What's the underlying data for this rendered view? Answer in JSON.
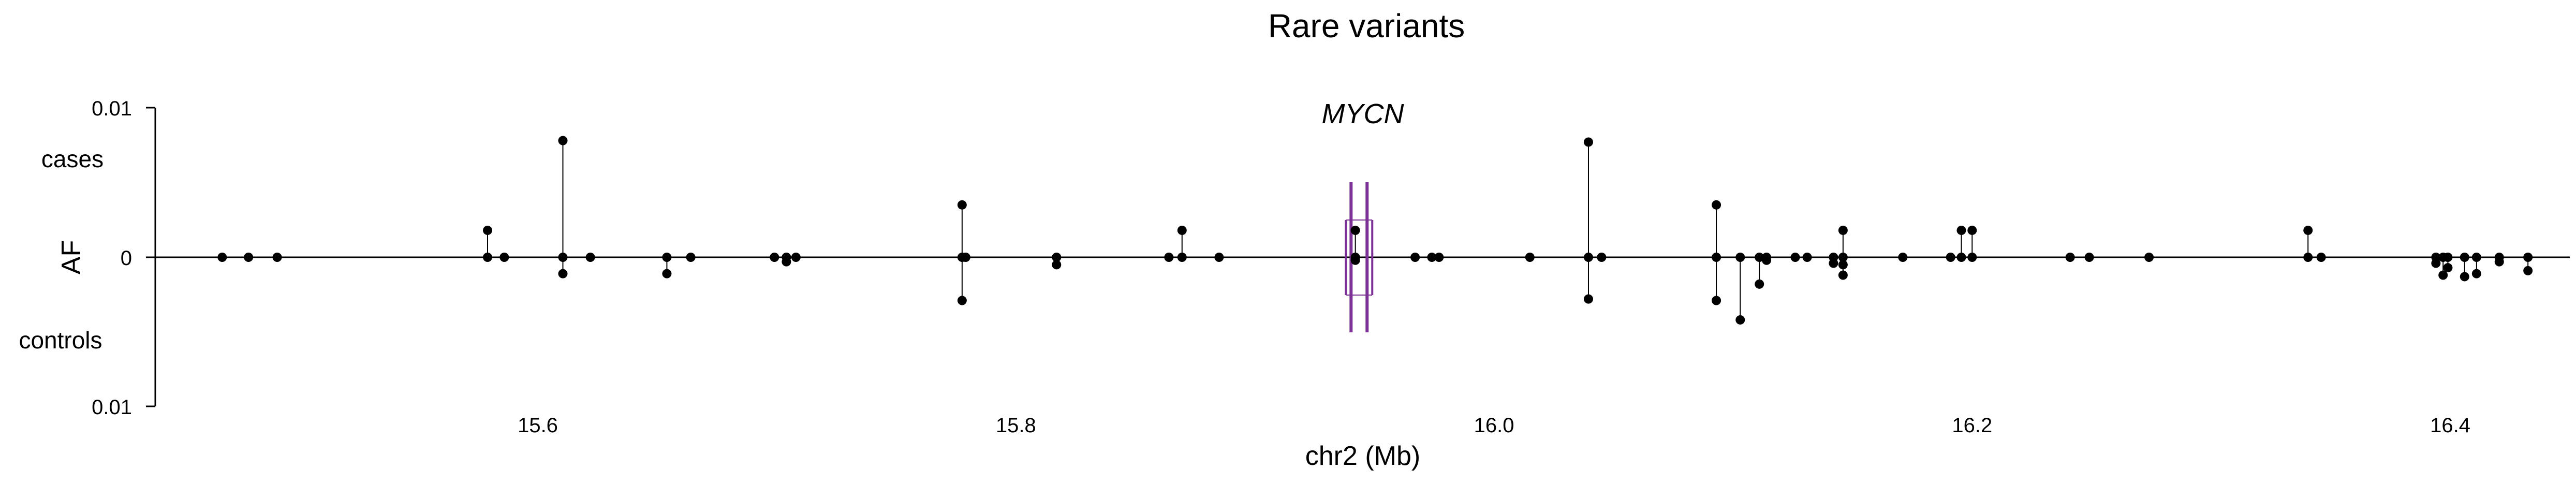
{
  "chart_data": {
    "type": "scatter",
    "title": "Rare variants",
    "gene_label": "MYCN",
    "xlabel": "chr2 (Mb)",
    "ylabel": "AF",
    "group_labels": {
      "upper": "cases",
      "lower": "controls"
    },
    "xlim": [
      15.44,
      16.45
    ],
    "ylim": [
      -0.01,
      0.01
    ],
    "x_ticks": [
      "15.6",
      "15.8",
      "16.0",
      "16.2",
      "16.4"
    ],
    "y_ticks": {
      "top": "0.01",
      "middle": "0",
      "bottom": "0.01"
    },
    "gene_color": "#7b3294",
    "gene": {
      "start": 15.9402,
      "end": 15.9469
    },
    "cases": [
      {
        "x": 15.468,
        "af": 0
      },
      {
        "x": 15.479,
        "af": 0
      },
      {
        "x": 15.491,
        "af": 0
      },
      {
        "x": 15.579,
        "af": 0.0018
      },
      {
        "x": 15.579,
        "af": 0
      },
      {
        "x": 15.586,
        "af": 0
      },
      {
        "x": 15.6105,
        "af": 0.0078
      },
      {
        "x": 15.6105,
        "af": 0
      },
      {
        "x": 15.622,
        "af": 0
      },
      {
        "x": 15.654,
        "af": 0
      },
      {
        "x": 15.664,
        "af": 0
      },
      {
        "x": 15.699,
        "af": 0
      },
      {
        "x": 15.704,
        "af": 0
      },
      {
        "x": 15.708,
        "af": 0
      },
      {
        "x": 15.7775,
        "af": 0.0035
      },
      {
        "x": 15.7775,
        "af": 0
      },
      {
        "x": 15.779,
        "af": 0
      },
      {
        "x": 15.817,
        "af": 0
      },
      {
        "x": 15.864,
        "af": 0
      },
      {
        "x": 15.8695,
        "af": 0.0018
      },
      {
        "x": 15.8695,
        "af": 0
      },
      {
        "x": 15.885,
        "af": 0
      },
      {
        "x": 15.942,
        "af": 0.0018
      },
      {
        "x": 15.942,
        "af": 0
      },
      {
        "x": 15.967,
        "af": 0
      },
      {
        "x": 15.974,
        "af": 0
      },
      {
        "x": 15.977,
        "af": 0
      },
      {
        "x": 16.015,
        "af": 0
      },
      {
        "x": 16.0395,
        "af": 0.0077
      },
      {
        "x": 16.0395,
        "af": 0
      },
      {
        "x": 16.045,
        "af": 0
      },
      {
        "x": 16.093,
        "af": 0.0035
      },
      {
        "x": 16.093,
        "af": 0
      },
      {
        "x": 16.103,
        "af": 0
      },
      {
        "x": 16.111,
        "af": 0
      },
      {
        "x": 16.114,
        "af": 0
      },
      {
        "x": 16.126,
        "af": 0
      },
      {
        "x": 16.131,
        "af": 0
      },
      {
        "x": 16.142,
        "af": 0
      },
      {
        "x": 16.146,
        "af": 0.0018
      },
      {
        "x": 16.146,
        "af": 0
      },
      {
        "x": 16.171,
        "af": 0
      },
      {
        "x": 16.191,
        "af": 0
      },
      {
        "x": 16.1955,
        "af": 0.0018
      },
      {
        "x": 16.1955,
        "af": 0
      },
      {
        "x": 16.2,
        "af": 0.0018
      },
      {
        "x": 16.2,
        "af": 0
      },
      {
        "x": 16.241,
        "af": 0
      },
      {
        "x": 16.249,
        "af": 0
      },
      {
        "x": 16.274,
        "af": 0
      },
      {
        "x": 16.3405,
        "af": 0.0018
      },
      {
        "x": 16.3405,
        "af": 0
      },
      {
        "x": 16.346,
        "af": 0
      },
      {
        "x": 16.394,
        "af": 0
      },
      {
        "x": 16.397,
        "af": 0
      },
      {
        "x": 16.399,
        "af": 0
      },
      {
        "x": 16.406,
        "af": 0
      },
      {
        "x": 16.411,
        "af": 0
      },
      {
        "x": 16.4205,
        "af": 0
      },
      {
        "x": 16.4325,
        "af": 0
      }
    ],
    "controls": [
      {
        "x": 15.6105,
        "af": 0.0011
      },
      {
        "x": 15.654,
        "af": 0.0011
      },
      {
        "x": 15.704,
        "af": 0.0003
      },
      {
        "x": 15.7775,
        "af": 0.0029
      },
      {
        "x": 15.817,
        "af": 0.0005
      },
      {
        "x": 15.942,
        "af": 0.0002
      },
      {
        "x": 16.0395,
        "af": 0.0028
      },
      {
        "x": 16.093,
        "af": 0.0029
      },
      {
        "x": 16.103,
        "af": 0.0042
      },
      {
        "x": 16.111,
        "af": 0.0018
      },
      {
        "x": 16.114,
        "af": 0.0002
      },
      {
        "x": 16.142,
        "af": 0.0004
      },
      {
        "x": 16.146,
        "af": 0.0012
      },
      {
        "x": 16.146,
        "af": 0.0005
      },
      {
        "x": 16.394,
        "af": 0.0004
      },
      {
        "x": 16.397,
        "af": 0.0012
      },
      {
        "x": 16.399,
        "af": 0.0007
      },
      {
        "x": 16.406,
        "af": 0.0013
      },
      {
        "x": 16.411,
        "af": 0.0011
      },
      {
        "x": 16.4205,
        "af": 0.0003
      },
      {
        "x": 16.4325,
        "af": 0.0009
      }
    ]
  }
}
